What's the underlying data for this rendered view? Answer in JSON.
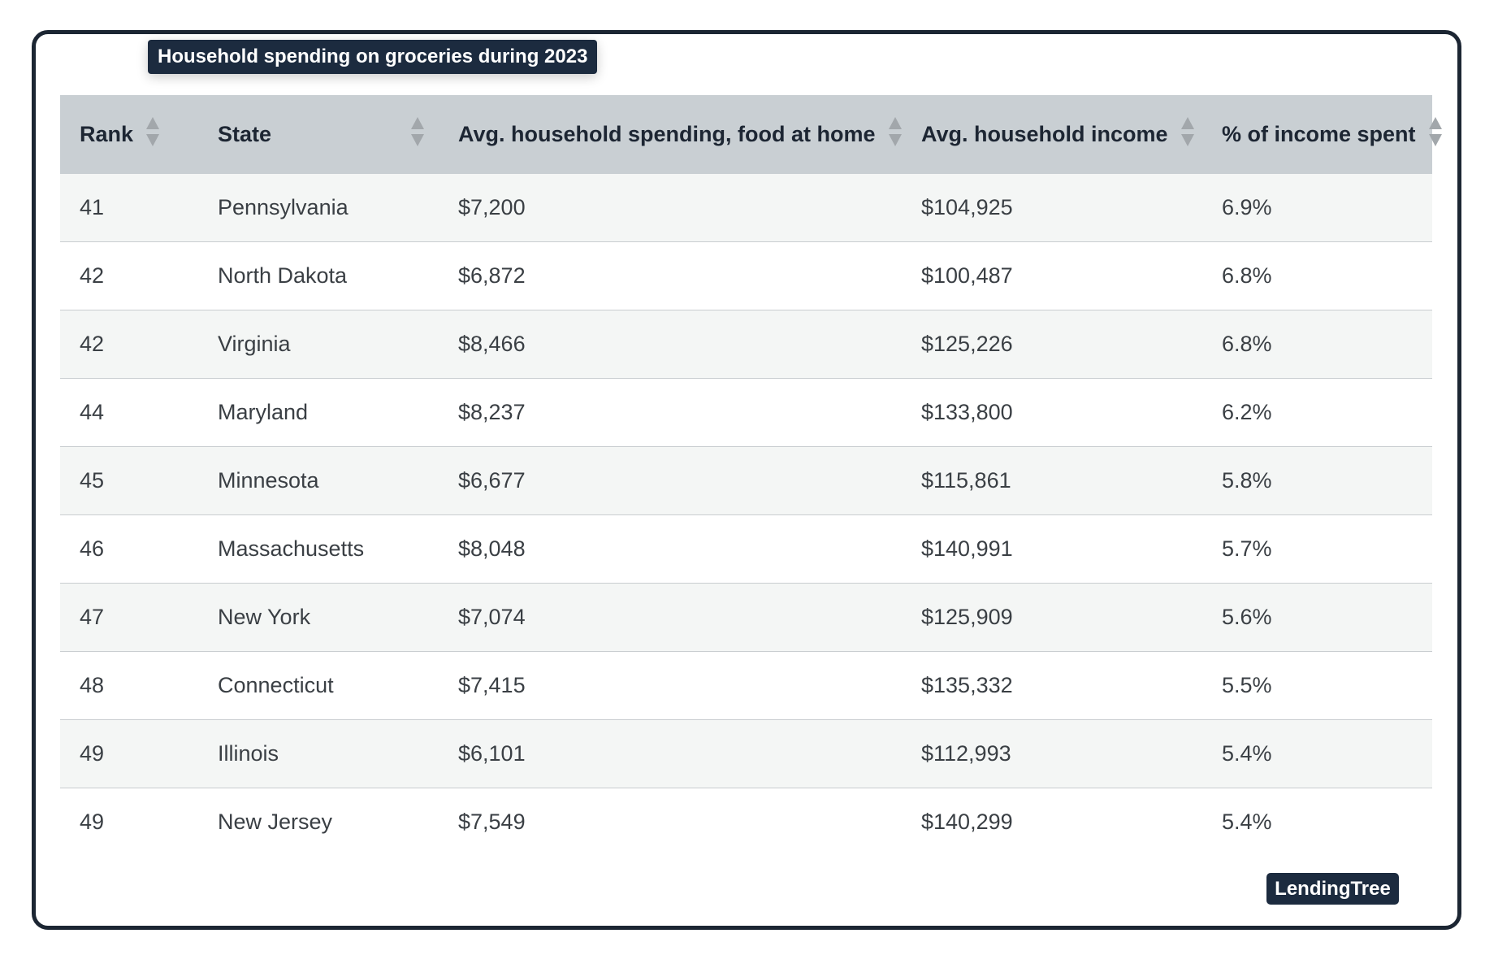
{
  "title": "Household spending on groceries during 2023",
  "table": {
    "columns": [
      "Rank",
      "State",
      "Avg. household spending, food at home",
      "Avg. household income",
      "% of income spent"
    ],
    "rows": [
      [
        "41",
        "Pennsylvania",
        "$7,200",
        "$104,925",
        "6.9%"
      ],
      [
        "42",
        "North Dakota",
        "$6,872",
        "$100,487",
        "6.8%"
      ],
      [
        "42",
        "Virginia",
        "$8,466",
        "$125,226",
        "6.8%"
      ],
      [
        "44",
        "Maryland",
        "$8,237",
        "$133,800",
        "6.2%"
      ],
      [
        "45",
        "Minnesota",
        "$6,677",
        "$115,861",
        "5.8%"
      ],
      [
        "46",
        "Massachusetts",
        "$8,048",
        "$140,991",
        "5.7%"
      ],
      [
        "47",
        "New York",
        "$7,074",
        "$125,909",
        "5.6%"
      ],
      [
        "48",
        "Connecticut",
        "$7,415",
        "$135,332",
        "5.5%"
      ],
      [
        "49",
        "Illinois",
        "$6,101",
        "$112,993",
        "5.4%"
      ],
      [
        "49",
        "New Jersey",
        "$7,549",
        "$140,299",
        "5.4%"
      ]
    ]
  },
  "footer": {
    "brand": "LendingTree"
  }
}
